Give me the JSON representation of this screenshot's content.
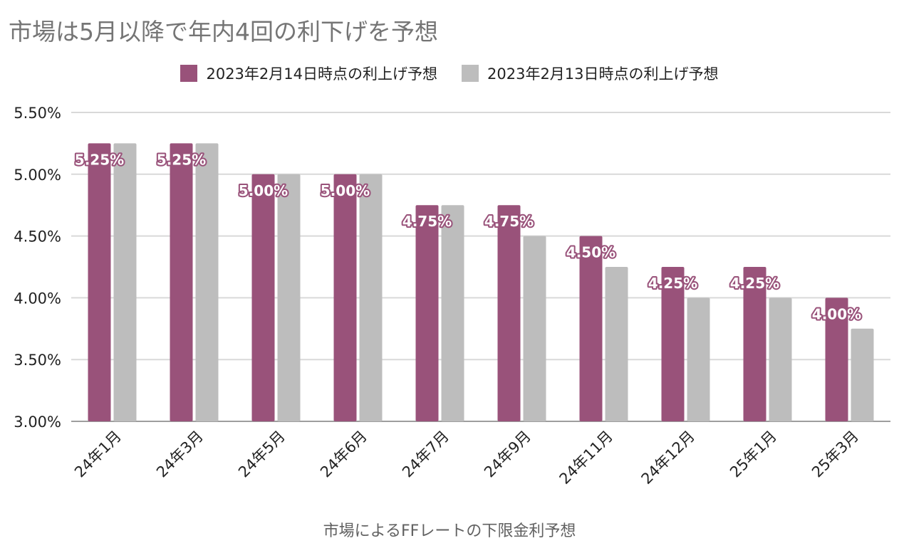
{
  "chart_data": {
    "type": "bar",
    "title": "市場は5月以降で年内4回の利下げを予想",
    "xlabel": "市場によるFFレートの下限金利予想",
    "ylabel": "",
    "ylim": [
      3.0,
      5.5
    ],
    "yticks": [
      "5.50%",
      "5.00%",
      "4.50%",
      "4.00%",
      "3.50%",
      "3.00%"
    ],
    "ytick_values": [
      5.5,
      5.0,
      4.5,
      4.0,
      3.5,
      3.0
    ],
    "grid": true,
    "legend_position": "top",
    "categories": [
      "24年1月",
      "24年3月",
      "24年5月",
      "24年6月",
      "24年7月",
      "24年9月",
      "24年11月",
      "24年12月",
      "25年1月",
      "25年3月"
    ],
    "series": [
      {
        "name": "2023年2月14日時点の利上げ予想",
        "color": "#99527a",
        "values": [
          5.25,
          5.25,
          5.0,
          5.0,
          4.75,
          4.75,
          4.5,
          4.25,
          4.25,
          4.0
        ],
        "data_labels": [
          "5.25%",
          "5.25%",
          "5.00%",
          "5.00%",
          "4.75%",
          "4.75%",
          "4.50%",
          "4.25%",
          "4.25%",
          "4.00%"
        ]
      },
      {
        "name": "2023年2月13日時点の利上げ予想",
        "color": "#bdbdbd",
        "values": [
          5.25,
          5.25,
          5.0,
          5.0,
          4.75,
          4.5,
          4.25,
          4.0,
          4.0,
          3.75
        ]
      }
    ]
  }
}
